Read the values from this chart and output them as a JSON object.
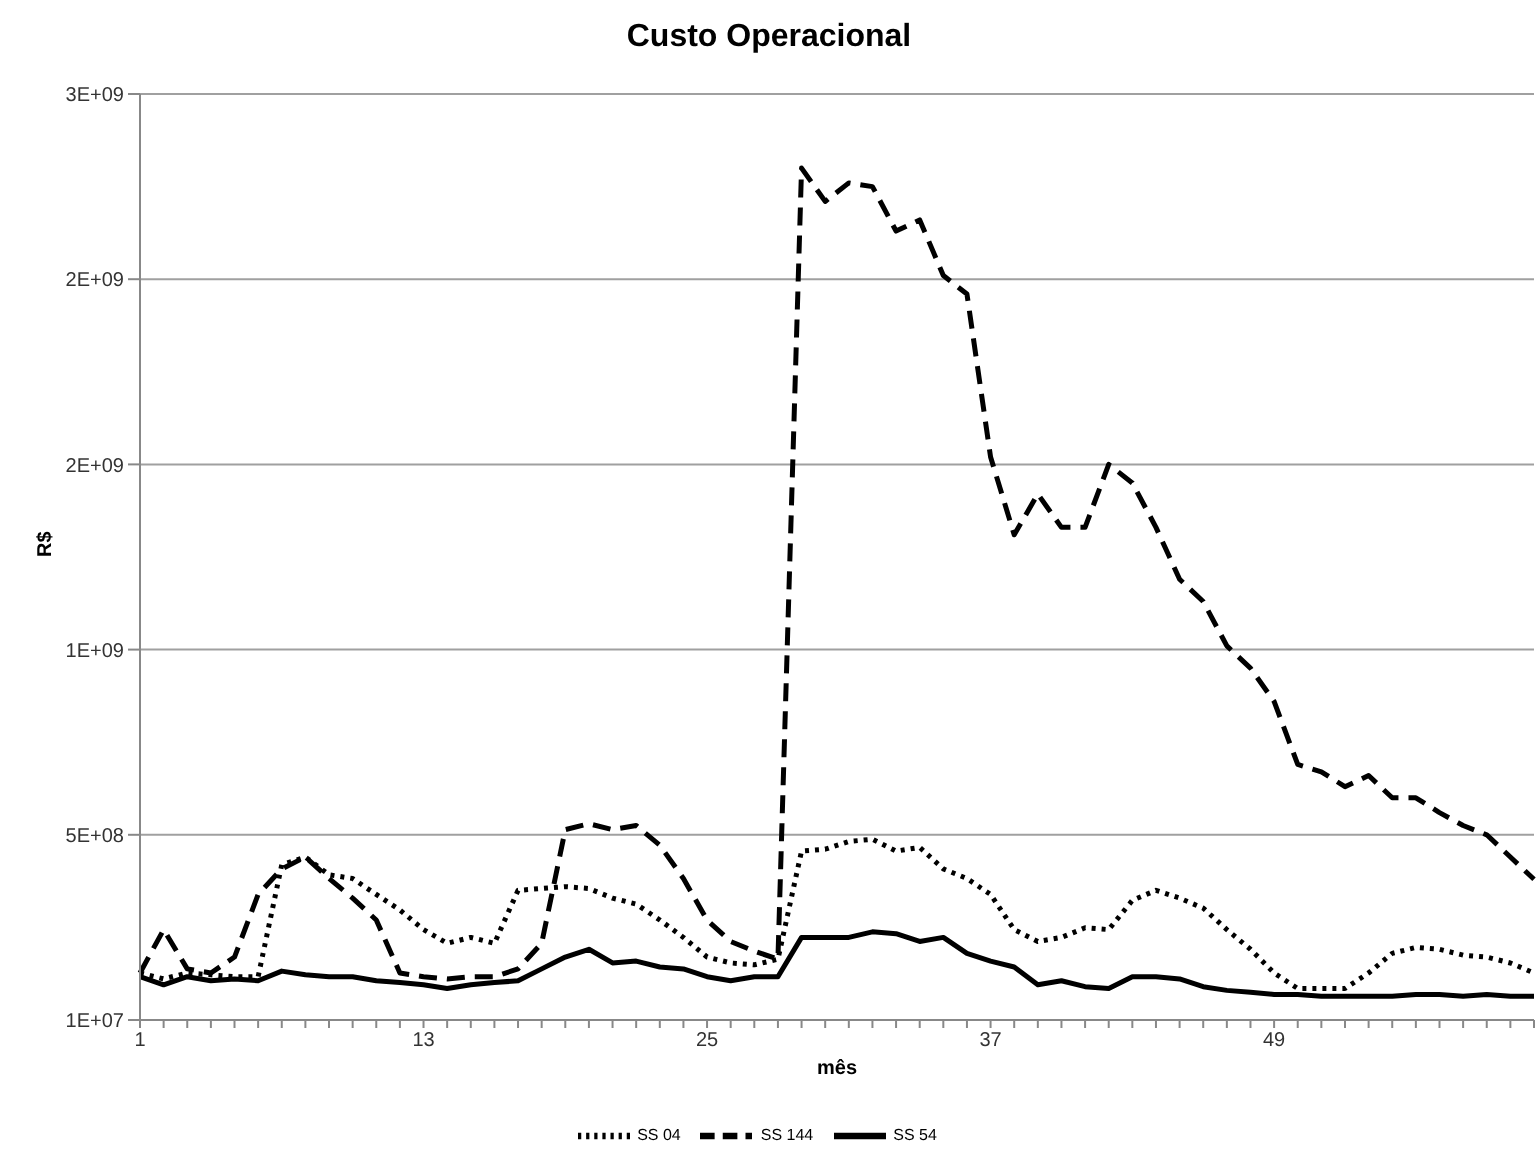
{
  "chart_data": {
    "type": "line",
    "title": "Custo Operacional",
    "xlabel": "mês",
    "ylabel": "R$",
    "categories": [
      "1",
      null,
      null,
      null,
      null,
      null,
      null,
      null,
      null,
      null,
      null,
      null,
      "13",
      null,
      null,
      null,
      null,
      null,
      null,
      null,
      null,
      null,
      null,
      null,
      "25",
      null,
      null,
      null,
      null,
      null,
      null,
      null,
      null,
      null,
      null,
      null,
      "37",
      null,
      null,
      null,
      null,
      null,
      null,
      null,
      null,
      null,
      null,
      null,
      "49",
      null,
      null,
      null,
      null,
      null,
      null,
      null,
      null,
      null,
      null,
      null
    ],
    "ylim": [
      10000000.0,
      2510000000.0
    ],
    "yticks": [
      {
        "value": 10000000.0,
        "label": "1E+07"
      },
      {
        "value": 510000000.0,
        "label": "5E+08"
      },
      {
        "value": 1010000000.0,
        "label": "1E+09"
      },
      {
        "value": 1510000000.0,
        "label": "2E+09"
      },
      {
        "value": 2010000000.0,
        "label": "2E+09"
      },
      {
        "value": 2510000000.0,
        "label": "3E+09"
      }
    ],
    "grid": "y",
    "legend": "bottom",
    "marker": "none",
    "series": [
      {
        "name": "SS 54",
        "color": "#000000",
        "line_style": "solid",
        "values": [
          127000000.0,
          105000000.0,
          127000000.0,
          116000000.0,
          121000000.0,
          116000000.0,
          142000000.0,
          132000000.0,
          127000000.0,
          127000000.0,
          116000000.0,
          111000000.0,
          105000000.0,
          95000000.0,
          105000000.0,
          111000000.0,
          116000000.0,
          148000000.0,
          180000000.0,
          201000000.0,
          164000000.0,
          169000000.0,
          153000000.0,
          148000000.0,
          127000000.0,
          116000000.0,
          127000000.0,
          127000000.0,
          233000000.0,
          233000000.0,
          233000000.0,
          248000000.0,
          243000000.0,
          222000000.0,
          233000000.0,
          190000000.0,
          169000000.0,
          153000000.0,
          105000000.0,
          116000000.0,
          100000000.0,
          95000000.0,
          127000000.0,
          127000000.0,
          121000000.0,
          100000000.0,
          90000000.0,
          85000000.0,
          79000000.0,
          79000000.0,
          74000000.0,
          74000000.0,
          74000000.0,
          74000000.0,
          79000000.0,
          79000000.0,
          74000000.0,
          79000000.0,
          74000000.0,
          74000000.0
        ]
      },
      {
        "name": "SS 04",
        "color": "#000000",
        "line_style": "dotted",
        "values": [
          137000000.0,
          121000000.0,
          137000000.0,
          132000000.0,
          127000000.0,
          127000000.0,
          429000000.0,
          450000000.0,
          402000000.0,
          392000000.0,
          349000000.0,
          307000000.0,
          254000000.0,
          217000000.0,
          233000000.0,
          217000000.0,
          360000000.0,
          365000000.0,
          370000000.0,
          365000000.0,
          339000000.0,
          323000000.0,
          280000000.0,
          233000000.0,
          180000000.0,
          164000000.0,
          159000000.0,
          174000000.0,
          466000000.0,
          471000000.0,
          492000000.0,
          498000000.0,
          466000000.0,
          476000000.0,
          418000000.0,
          392000000.0,
          349000000.0,
          254000000.0,
          222000000.0,
          233000000.0,
          259000000.0,
          254000000.0,
          333000000.0,
          360000000.0,
          339000000.0,
          312000000.0,
          254000000.0,
          201000000.0,
          137000000.0,
          95000000.0,
          95000000.0,
          95000000.0,
          137000000.0,
          190000000.0,
          206000000.0,
          201000000.0,
          185000000.0,
          180000000.0,
          164000000.0,
          137000000.0
        ]
      },
      {
        "name": "SS 144",
        "color": "#000000",
        "line_style": "dashed",
        "values": [
          137000000.0,
          254000000.0,
          148000000.0,
          137000000.0,
          180000000.0,
          349000000.0,
          418000000.0,
          450000000.0,
          392000000.0,
          339000000.0,
          280000000.0,
          137000000.0,
          127000000.0,
          121000000.0,
          127000000.0,
          127000000.0,
          148000000.0,
          217000000.0,
          524000000.0,
          540000000.0,
          524000000.0,
          535000000.0,
          482000000.0,
          392000000.0,
          280000000.0,
          222000000.0,
          196000000.0,
          174000000.0,
          2310000000.0,
          2220000000.0,
          2270000000.0,
          2260000000.0,
          2140000000.0,
          2170000000.0,
          2020000000.0,
          1970000000.0,
          1530000000.0,
          1320000000.0,
          1430000000.0,
          1340000000.0,
          1340000000.0,
          1510000000.0,
          1460000000.0,
          1340000000.0,
          1200000000.0,
          1140000000.0,
          1020000000.0,
          960000000.0,
          870000000.0,
          700000000.0,
          680000000.0,
          640000000.0,
          670000000.0,
          610000000.0,
          610000000.0,
          570000000.0,
          535000000.0,
          510000000.0,
          450000000.0,
          390000000.0
        ]
      }
    ]
  }
}
